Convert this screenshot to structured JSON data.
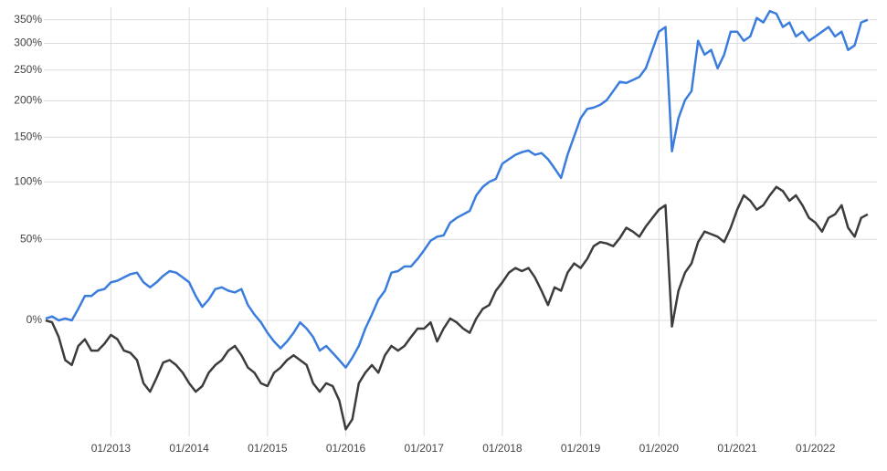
{
  "chart_data": {
    "type": "line",
    "log_scale": true,
    "grid": true,
    "x": [
      "2012-03",
      "2012-04",
      "2012-05",
      "2012-06",
      "2012-07",
      "2012-08",
      "2012-09",
      "2012-10",
      "2012-11",
      "2012-12",
      "2013-01",
      "2013-02",
      "2013-03",
      "2013-04",
      "2013-05",
      "2013-06",
      "2013-07",
      "2013-08",
      "2013-09",
      "2013-10",
      "2013-11",
      "2013-12",
      "2014-01",
      "2014-02",
      "2014-03",
      "2014-04",
      "2014-05",
      "2014-06",
      "2014-07",
      "2014-08",
      "2014-09",
      "2014-10",
      "2014-11",
      "2014-12",
      "2015-01",
      "2015-02",
      "2015-03",
      "2015-04",
      "2015-05",
      "2015-06",
      "2015-07",
      "2015-08",
      "2015-09",
      "2015-10",
      "2015-11",
      "2015-12",
      "2016-01",
      "2016-02",
      "2016-03",
      "2016-04",
      "2016-05",
      "2016-06",
      "2016-07",
      "2016-08",
      "2016-09",
      "2016-10",
      "2016-11",
      "2016-12",
      "2017-01",
      "2017-02",
      "2017-03",
      "2017-04",
      "2017-05",
      "2017-06",
      "2017-07",
      "2017-08",
      "2017-09",
      "2017-10",
      "2017-11",
      "2017-12",
      "2018-01",
      "2018-02",
      "2018-03",
      "2018-04",
      "2018-05",
      "2018-06",
      "2018-07",
      "2018-08",
      "2018-09",
      "2018-10",
      "2018-11",
      "2018-12",
      "2019-01",
      "2019-02",
      "2019-03",
      "2019-04",
      "2019-05",
      "2019-06",
      "2019-07",
      "2019-08",
      "2019-09",
      "2019-10",
      "2019-11",
      "2019-12",
      "2020-01",
      "2020-02",
      "2020-03",
      "2020-04",
      "2020-05",
      "2020-06",
      "2020-07",
      "2020-08",
      "2020-09",
      "2020-10",
      "2020-11",
      "2020-12",
      "2021-01",
      "2021-02",
      "2021-03",
      "2021-04",
      "2021-05",
      "2021-06",
      "2021-07",
      "2021-08",
      "2021-09",
      "2021-10",
      "2021-11",
      "2021-12",
      "2022-01",
      "2022-02",
      "2022-03",
      "2022-04",
      "2022-05",
      "2022-06",
      "2022-07",
      "2022-08",
      "2022-09"
    ],
    "series": [
      {
        "color": "#3b7ddd",
        "values": [
          1,
          2,
          0,
          1,
          0,
          6,
          13,
          13,
          16,
          17,
          21,
          22,
          24,
          26,
          27,
          21,
          18,
          21,
          25,
          28,
          27,
          24,
          21,
          13,
          7,
          11,
          17,
          18,
          16,
          15,
          17,
          8,
          3,
          -1,
          -6,
          -10,
          -13,
          -10,
          -6,
          -1,
          -4,
          -8,
          -14,
          -12,
          -15,
          -18,
          -21,
          -17,
          -12,
          -4,
          3,
          11,
          16,
          27,
          28,
          31,
          31,
          36,
          42,
          49,
          52,
          53,
          63,
          67,
          70,
          73,
          87,
          95,
          100,
          103,
          119,
          124,
          129,
          132,
          134,
          129,
          131,
          124,
          114,
          104,
          129,
          151,
          175,
          188,
          190,
          194,
          201,
          215,
          230,
          228,
          233,
          238,
          253,
          287,
          324,
          334,
          133,
          175,
          201,
          215,
          305,
          278,
          287,
          253,
          278,
          324,
          324,
          305,
          314,
          354,
          344,
          370,
          364,
          334,
          344,
          314,
          324,
          305,
          314,
          324,
          334,
          314,
          324,
          287,
          296,
          344,
          350
        ]
      },
      {
        "color": "#3c3c3c",
        "values": [
          0,
          -1,
          -8,
          -18,
          -20,
          -12,
          -9,
          -14,
          -14,
          -11,
          -7,
          -9,
          -14,
          -15,
          -18,
          -27,
          -30,
          -25,
          -19,
          -18,
          -20,
          -23,
          -27,
          -30,
          -28,
          -23,
          -20,
          -18,
          -14,
          -12,
          -16,
          -21,
          -23,
          -27,
          -28,
          -23,
          -21,
          -18,
          -16,
          -18,
          -20,
          -27,
          -30,
          -27,
          -28,
          -33,
          -42,
          -39,
          -27,
          -23,
          -20,
          -23,
          -16,
          -12,
          -14,
          -12,
          -8,
          -4,
          -4,
          -1,
          -10,
          -4,
          1,
          -1,
          -4,
          -6,
          1,
          6,
          8,
          16,
          21,
          27,
          30,
          28,
          30,
          24,
          16,
          8,
          18,
          16,
          27,
          33,
          30,
          36,
          45,
          48,
          47,
          45,
          51,
          59,
          56,
          52,
          60,
          67,
          74,
          78,
          -3,
          16,
          27,
          33,
          48,
          56,
          54,
          52,
          48,
          59,
          74,
          87,
          82,
          74,
          78,
          87,
          95,
          91,
          82,
          87,
          78,
          67,
          63,
          56,
          67,
          70,
          78,
          59,
          52,
          67,
          70
        ]
      }
    ],
    "xlim": [
      "2012-03",
      "2022-10"
    ],
    "xticks": [
      {
        "value": "2013-01",
        "label": "01/2013"
      },
      {
        "value": "2014-01",
        "label": "01/2014"
      },
      {
        "value": "2015-01",
        "label": "01/2015"
      },
      {
        "value": "2016-01",
        "label": "01/2016"
      },
      {
        "value": "2017-01",
        "label": "01/2017"
      },
      {
        "value": "2018-01",
        "label": "01/2018"
      },
      {
        "value": "2019-01",
        "label": "01/2019"
      },
      {
        "value": "2020-01",
        "label": "01/2020"
      },
      {
        "value": "2021-01",
        "label": "01/2021"
      },
      {
        "value": "2022-01",
        "label": "01/2022"
      }
    ],
    "ylim": [
      -44,
      379
    ],
    "yticks": [
      {
        "value": 0,
        "label": "0%"
      },
      {
        "value": 50,
        "label": "50%"
      },
      {
        "value": 100,
        "label": "100%"
      },
      {
        "value": 150,
        "label": "150%"
      },
      {
        "value": 200,
        "label": "200%"
      },
      {
        "value": 250,
        "label": "250%"
      },
      {
        "value": 300,
        "label": "300%"
      },
      {
        "value": 350,
        "label": "350%"
      }
    ]
  }
}
